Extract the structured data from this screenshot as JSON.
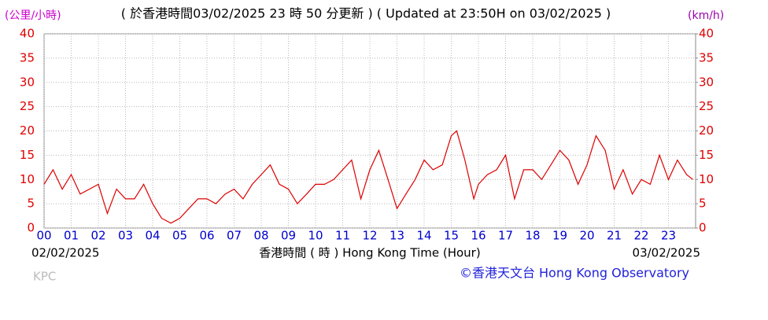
{
  "chart_data": {
    "type": "line",
    "title": "( 於香港時間03/02/2025 23 時 50 分更新 ) ( Updated at 23:50H on 03/02/2025 )",
    "ylabel": "(公里/小時)",
    "y2label": "(km/h)",
    "xlabel": "香港時間 ( 時 ) Hong Kong Time (Hour)",
    "start_date": "02/02/2025",
    "end_date": "03/02/2025",
    "station": "KPC",
    "credit": "©香港天文台 Hong Kong Observatory",
    "xlim": [
      0,
      24
    ],
    "xticks": [
      {
        "value": 0,
        "label": "00"
      },
      {
        "value": 1,
        "label": "01"
      },
      {
        "value": 2,
        "label": "02"
      },
      {
        "value": 3,
        "label": "03"
      },
      {
        "value": 4,
        "label": "04"
      },
      {
        "value": 5,
        "label": "05"
      },
      {
        "value": 6,
        "label": "06"
      },
      {
        "value": 7,
        "label": "07"
      },
      {
        "value": 8,
        "label": "08"
      },
      {
        "value": 9,
        "label": "09"
      },
      {
        "value": 10,
        "label": "10"
      },
      {
        "value": 11,
        "label": "11"
      },
      {
        "value": 12,
        "label": "12"
      },
      {
        "value": 13,
        "label": "13"
      },
      {
        "value": 14,
        "label": "14"
      },
      {
        "value": 15,
        "label": "15"
      },
      {
        "value": 16,
        "label": "16"
      },
      {
        "value": 17,
        "label": "17"
      },
      {
        "value": 18,
        "label": "18"
      },
      {
        "value": 19,
        "label": "19"
      },
      {
        "value": 20,
        "label": "20"
      },
      {
        "value": 21,
        "label": "21"
      },
      {
        "value": 22,
        "label": "22"
      },
      {
        "value": 23,
        "label": "23"
      }
    ],
    "ylim": [
      0,
      40
    ],
    "yticks": [
      0,
      5,
      10,
      15,
      20,
      25,
      30,
      35,
      40
    ],
    "y2lim": [
      0,
      40
    ],
    "y2ticks": [
      0,
      5,
      10,
      15,
      20,
      25,
      30,
      35,
      40
    ],
    "grid": true,
    "x": [
      0,
      0.33,
      0.67,
      1,
      1.33,
      1.67,
      2,
      2.33,
      2.67,
      3,
      3.33,
      3.67,
      4,
      4.33,
      4.67,
      5,
      5.33,
      5.67,
      6,
      6.33,
      6.67,
      7,
      7.33,
      7.67,
      8,
      8.33,
      8.67,
      9,
      9.33,
      9.67,
      10,
      10.33,
      10.67,
      11,
      11.33,
      11.67,
      12,
      12.33,
      12.67,
      13,
      13.33,
      13.67,
      14,
      14.33,
      14.67,
      15,
      15.2,
      15.5,
      15.83,
      16,
      16.33,
      16.67,
      17,
      17.33,
      17.67,
      18,
      18.33,
      18.67,
      19,
      19.33,
      19.67,
      20,
      20.33,
      20.67,
      21,
      21.33,
      21.67,
      22,
      22.33,
      22.67,
      23,
      23.33,
      23.67,
      23.9
    ],
    "series": [
      {
        "color": "#dd0000",
        "values": [
          9,
          12,
          8,
          11,
          7,
          8,
          9,
          3,
          8,
          6,
          6,
          9,
          5,
          2,
          1,
          2,
          4,
          6,
          6,
          5,
          7,
          8,
          6,
          9,
          11,
          13,
          9,
          8,
          5,
          7,
          9,
          9,
          10,
          12,
          14,
          6,
          12,
          16,
          10,
          4,
          7,
          10,
          14,
          12,
          13,
          19,
          20,
          14,
          6,
          9,
          11,
          12,
          15,
          6,
          12,
          12,
          10,
          13,
          16,
          14,
          9,
          13,
          19,
          16,
          8,
          12,
          7,
          10,
          9,
          15,
          10,
          14,
          11,
          10
        ]
      }
    ]
  }
}
